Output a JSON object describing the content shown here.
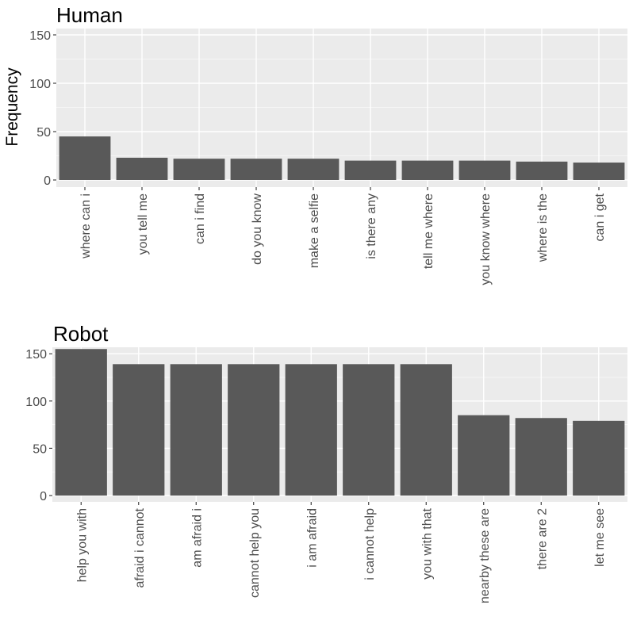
{
  "ylabel": "Frequency",
  "colors": {
    "bar": "#595959",
    "panel_background": "#ebebeb",
    "grid": "#ffffff"
  },
  "chart_data": [
    {
      "type": "bar",
      "title": "Human",
      "xlabel": "",
      "ylabel": "Frequency",
      "ylim": [
        0,
        155
      ],
      "yticks": [
        "0",
        "50",
        "100",
        "150"
      ],
      "grid": true,
      "categories": [
        "where can i",
        "you tell me",
        "can i find",
        "do you know",
        "make a selfie",
        "is there any",
        "tell me where",
        "you know where",
        "where is the",
        "can i get"
      ],
      "values": [
        45,
        23,
        22,
        22,
        22,
        20,
        20,
        20,
        19,
        18
      ]
    },
    {
      "type": "bar",
      "title": "Robot",
      "xlabel": "",
      "ylabel": "",
      "ylim": [
        0,
        155
      ],
      "yticks": [
        "0",
        "50",
        "100",
        "150"
      ],
      "grid": true,
      "categories": [
        "help you with",
        "afraid i cannot",
        "am afraid i",
        "cannot help you",
        "i am afraid",
        "i cannot help",
        "you with that",
        "nearby these are",
        "there are 2",
        "let me see"
      ],
      "values": [
        155,
        139,
        139,
        139,
        139,
        139,
        139,
        85,
        82,
        79
      ]
    }
  ]
}
